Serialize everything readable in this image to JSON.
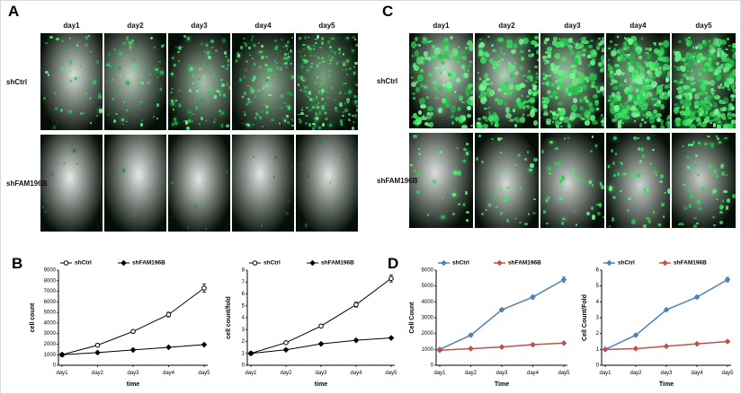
{
  "panelA": {
    "letter": "A",
    "col_headers": [
      "day1",
      "day2",
      "day3",
      "day4",
      "day5"
    ],
    "rows": [
      {
        "label": "shCtrl",
        "mode": "ctrlA",
        "counts": [
          45,
          65,
          95,
          130,
          170
        ]
      },
      {
        "label": "shFAM196B",
        "mode": "kdA",
        "counts": [
          10,
          7,
          9,
          12,
          16
        ]
      }
    ]
  },
  "panelB": {
    "letter": "B"
  },
  "panelC": {
    "letter": "C",
    "col_headers": [
      "day1",
      "day2",
      "day3",
      "day4",
      "day5"
    ],
    "rows": [
      {
        "label": "shCtrl",
        "mode": "ctrlC",
        "counts": [
          140,
          170,
          220,
          260,
          300
        ]
      },
      {
        "label": "shFAM196B",
        "mode": "kdC",
        "counts": [
          30,
          35,
          40,
          48,
          55
        ]
      }
    ]
  },
  "panelD": {
    "letter": "D"
  },
  "chart_data": [
    {
      "id": "B-left",
      "type": "line",
      "x": [
        "day1",
        "day2",
        "day3",
        "day4",
        "day5"
      ],
      "xlabel": "time",
      "ylabel": "cell count",
      "ylim": [
        0,
        9000
      ],
      "ytick": 1000,
      "legend_position": "top",
      "grid": false,
      "series": [
        {
          "name": "shCtrl",
          "color": "#000000",
          "marker": "open-circle",
          "values": [
            1000,
            1900,
            3200,
            4800,
            7300
          ],
          "errors": [
            0,
            60,
            120,
            220,
            380
          ]
        },
        {
          "name": "shFAM196B",
          "color": "#000000",
          "marker": "filled-diamond",
          "values": [
            1000,
            1200,
            1450,
            1700,
            1950
          ]
        }
      ]
    },
    {
      "id": "B-right",
      "type": "line",
      "x": [
        "day1",
        "day2",
        "day3",
        "day4",
        "day5"
      ],
      "xlabel": "time",
      "ylabel": "cell count/fold",
      "ylim": [
        0,
        8
      ],
      "ytick": 1,
      "legend_position": "top",
      "grid": false,
      "series": [
        {
          "name": "shCtrl",
          "color": "#000000",
          "marker": "open-circle",
          "values": [
            1,
            1.9,
            3.3,
            5.1,
            7.3
          ],
          "errors": [
            0,
            0.05,
            0.12,
            0.2,
            0.3
          ]
        },
        {
          "name": "shFAM196B",
          "color": "#000000",
          "marker": "filled-diamond",
          "values": [
            1,
            1.3,
            1.8,
            2.1,
            2.3
          ]
        }
      ]
    },
    {
      "id": "D-left",
      "type": "line",
      "x": [
        "day1",
        "day2",
        "day3",
        "day4",
        "day5"
      ],
      "xlabel": "Time",
      "ylabel": "Cell Count",
      "ylim": [
        0,
        6000
      ],
      "ytick": 1000,
      "legend_position": "top",
      "grid": false,
      "series": [
        {
          "name": "shCtrl",
          "color": "#4f81bd",
          "marker": "filled-diamond",
          "values": [
            1000,
            1900,
            3500,
            4300,
            5400
          ],
          "errors": [
            40,
            60,
            90,
            120,
            180
          ]
        },
        {
          "name": "shFAM196B",
          "color": "#c0504d",
          "marker": "filled-diamond",
          "values": [
            950,
            1050,
            1150,
            1300,
            1400
          ]
        }
      ]
    },
    {
      "id": "D-right",
      "type": "line",
      "x": [
        "day1",
        "day2",
        "day3",
        "day4",
        "day5"
      ],
      "xlabel": "Time",
      "ylabel": "Cell Count/Fold",
      "ylim": [
        0,
        6
      ],
      "ytick": 1,
      "legend_position": "top",
      "grid": false,
      "series": [
        {
          "name": "shCtrl",
          "color": "#4f81bd",
          "marker": "filled-diamond",
          "values": [
            1,
            1.9,
            3.5,
            4.3,
            5.4
          ],
          "errors": [
            0.03,
            0.05,
            0.08,
            0.1,
            0.15
          ]
        },
        {
          "name": "shFAM196B",
          "color": "#c0504d",
          "marker": "filled-diamond",
          "values": [
            1,
            1.05,
            1.2,
            1.35,
            1.5
          ]
        }
      ]
    }
  ]
}
